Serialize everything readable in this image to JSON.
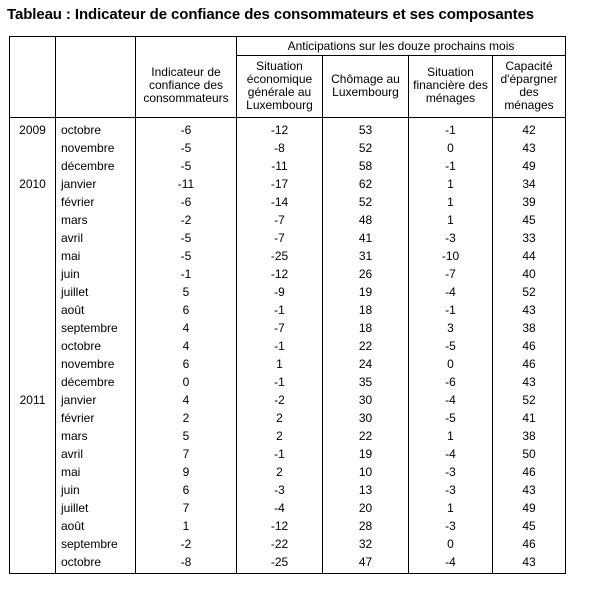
{
  "title": "Tableau : Indicateur de confiance des consommateurs et ses composantes",
  "header": {
    "group": "Anticipations sur les douze prochains mois",
    "columns": [
      "Indicateur de confiance des consommateurs",
      "Situation économique générale au Luxembourg",
      "Chômage au Luxembourg",
      "Situation financière des ménages",
      "Capacité d'épargner des ménages"
    ]
  },
  "rows": [
    {
      "year": "2009",
      "month": "octobre",
      "values": [
        "-6",
        "-12",
        "53",
        "-1",
        "42"
      ]
    },
    {
      "year": "",
      "month": "novembre",
      "values": [
        "-5",
        "-8",
        "52",
        "0",
        "43"
      ]
    },
    {
      "year": "",
      "month": "décembre",
      "values": [
        "-5",
        "-11",
        "58",
        "-1",
        "49"
      ]
    },
    {
      "year": "2010",
      "month": "janvier",
      "values": [
        "-11",
        "-17",
        "62",
        "1",
        "34"
      ]
    },
    {
      "year": "",
      "month": "février",
      "values": [
        "-6",
        "-14",
        "52",
        "1",
        "39"
      ]
    },
    {
      "year": "",
      "month": "mars",
      "values": [
        "-2",
        "-7",
        "48",
        "1",
        "45"
      ]
    },
    {
      "year": "",
      "month": "avril",
      "values": [
        "-5",
        "-7",
        "41",
        "-3",
        "33"
      ]
    },
    {
      "year": "",
      "month": "mai",
      "values": [
        "-5",
        "-25",
        "31",
        "-10",
        "44"
      ]
    },
    {
      "year": "",
      "month": "juin",
      "values": [
        "-1",
        "-12",
        "26",
        "-7",
        "40"
      ]
    },
    {
      "year": "",
      "month": "juillet",
      "values": [
        "5",
        "-9",
        "19",
        "-4",
        "52"
      ]
    },
    {
      "year": "",
      "month": "août",
      "values": [
        "6",
        "-1",
        "18",
        "-1",
        "43"
      ]
    },
    {
      "year": "",
      "month": "septembre",
      "values": [
        "4",
        "-7",
        "18",
        "3",
        "38"
      ]
    },
    {
      "year": "",
      "month": "octobre",
      "values": [
        "4",
        "-1",
        "22",
        "-5",
        "46"
      ]
    },
    {
      "year": "",
      "month": "novembre",
      "values": [
        "6",
        "1",
        "24",
        "0",
        "46"
      ]
    },
    {
      "year": "",
      "month": "décembre",
      "values": [
        "0",
        "-1",
        "35",
        "-6",
        "43"
      ]
    },
    {
      "year": "2011",
      "month": "janvier",
      "values": [
        "4",
        "-2",
        "30",
        "-4",
        "52"
      ]
    },
    {
      "year": "",
      "month": "février",
      "values": [
        "2",
        "2",
        "30",
        "-5",
        "41"
      ]
    },
    {
      "year": "",
      "month": "mars",
      "values": [
        "5",
        "2",
        "22",
        "1",
        "38"
      ]
    },
    {
      "year": "",
      "month": "avril",
      "values": [
        "7",
        "-1",
        "19",
        "-4",
        "50"
      ]
    },
    {
      "year": "",
      "month": "mai",
      "values": [
        "9",
        "2",
        "10",
        "-3",
        "46"
      ]
    },
    {
      "year": "",
      "month": "juin",
      "values": [
        "6",
        "-3",
        "13",
        "-3",
        "43"
      ]
    },
    {
      "year": "",
      "month": "juillet",
      "values": [
        "7",
        "-4",
        "20",
        "1",
        "49"
      ]
    },
    {
      "year": "",
      "month": "août",
      "values": [
        "1",
        "-12",
        "28",
        "-3",
        "45"
      ]
    },
    {
      "year": "",
      "month": "septembre",
      "values": [
        "-2",
        "-22",
        "32",
        "0",
        "46"
      ]
    },
    {
      "year": "",
      "month": "octobre",
      "values": [
        "-8",
        "-25",
        "47",
        "-4",
        "43"
      ]
    }
  ]
}
